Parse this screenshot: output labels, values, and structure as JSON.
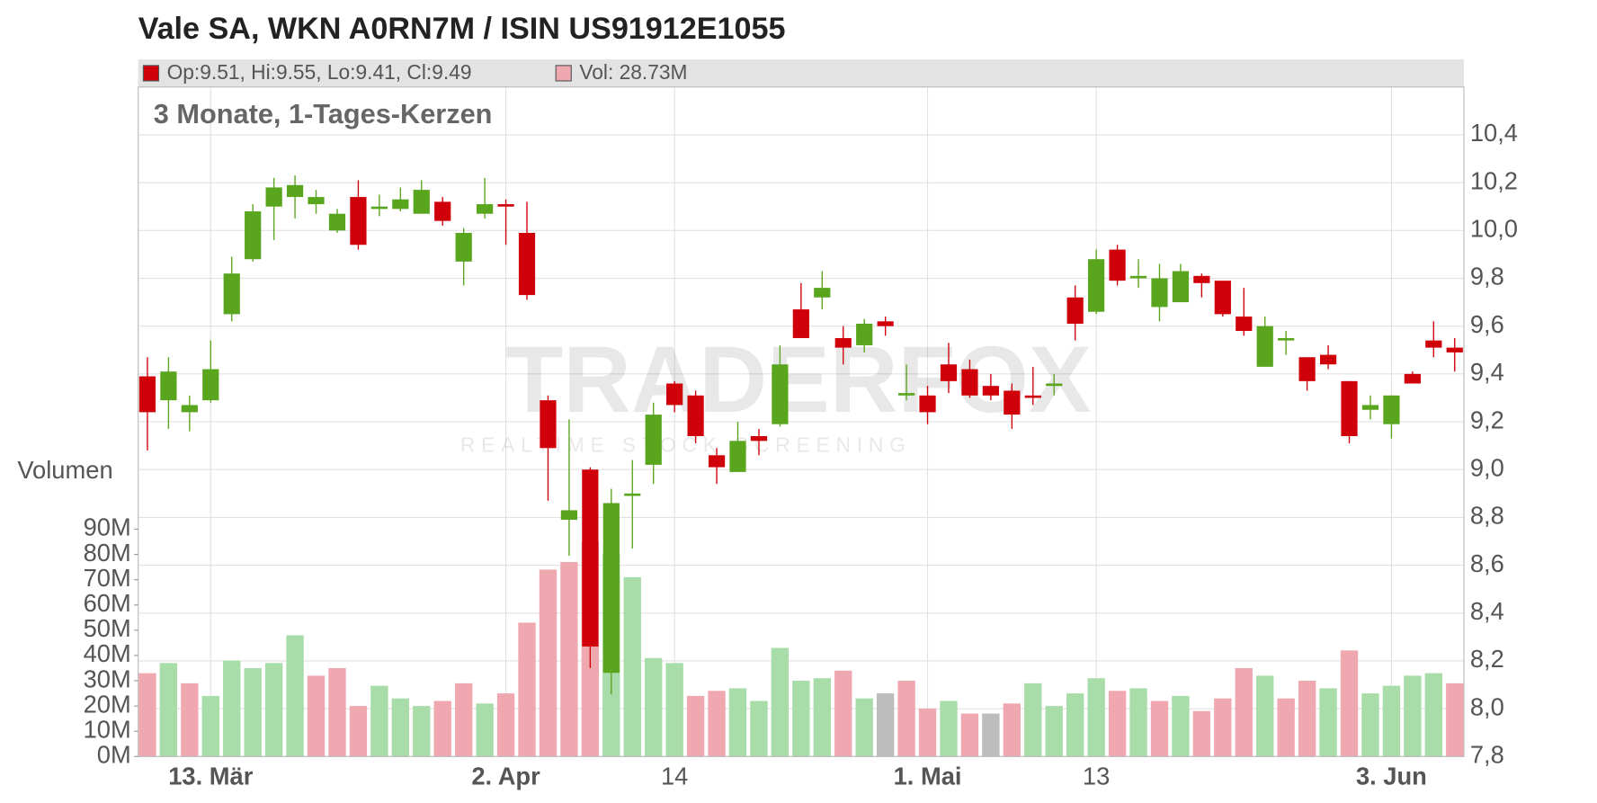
{
  "chart_data": {
    "type": "candlestick",
    "title": "Vale SA, WKN A0RN7M / ISIN US91912E1055",
    "subtitle": "3 Monate, 1-Tages-Kerzen",
    "legend_price": "Op:9.51, Hi:9.55, Lo:9.41, Cl:9.49",
    "legend_volume": "Vol: 28.73M",
    "volume_axis_label": "Volumen",
    "watermark": "TRADERFOX",
    "watermark_sub": "REALTIME STOCK SCREENING",
    "categories": [
      null,
      null,
      null,
      "13. Mär",
      null,
      null,
      null,
      null,
      null,
      null,
      null,
      null,
      null,
      null,
      null,
      null,
      null,
      "2. Apr",
      null,
      null,
      null,
      null,
      null,
      null,
      null,
      "14",
      null,
      null,
      null,
      null,
      null,
      null,
      null,
      null,
      null,
      null,
      null,
      "1. Mai",
      null,
      null,
      null,
      null,
      null,
      null,
      null,
      "13",
      null,
      null,
      null,
      null,
      null,
      null,
      null,
      null,
      null,
      null,
      null,
      null,
      null,
      "3. Jun",
      null,
      null,
      null
    ],
    "open": [
      9.39,
      9.29,
      9.24,
      9.29,
      9.65,
      9.88,
      10.1,
      10.14,
      10.11,
      10.0,
      10.14,
      10.09,
      10.09,
      10.07,
      10.12,
      9.87,
      10.07,
      10.11,
      9.99,
      9.29,
      8.79,
      9.0,
      8.15,
      8.89,
      9.02,
      9.36,
      9.31,
      9.06,
      8.99,
      9.14,
      9.19,
      9.67,
      9.72,
      9.55,
      9.52,
      9.62,
      9.31,
      9.31,
      9.44,
      9.42,
      9.35,
      9.33,
      9.31,
      9.35,
      9.72,
      9.66,
      9.92,
      9.8,
      9.68,
      9.7,
      9.81,
      9.79,
      9.64,
      9.43,
      9.54,
      9.47,
      9.48,
      9.37,
      9.25,
      9.19,
      9.4,
      9.54,
      9.51
    ],
    "high": [
      9.47,
      9.47,
      9.31,
      9.54,
      9.89,
      10.11,
      10.22,
      10.23,
      10.17,
      10.09,
      10.21,
      10.15,
      10.18,
      10.21,
      10.14,
      10.01,
      10.22,
      10.13,
      10.12,
      9.31,
      9.21,
      9.01,
      8.92,
      9.04,
      9.28,
      9.37,
      9.33,
      9.09,
      9.2,
      9.17,
      9.52,
      9.78,
      9.83,
      9.6,
      9.63,
      9.64,
      9.44,
      9.35,
      9.53,
      9.46,
      9.4,
      9.36,
      9.43,
      9.4,
      9.77,
      9.92,
      9.94,
      9.88,
      9.86,
      9.86,
      9.82,
      9.79,
      9.76,
      9.64,
      9.58,
      9.47,
      9.52,
      9.37,
      9.31,
      9.31,
      9.41,
      9.62,
      9.55
    ],
    "low": [
      9.08,
      9.17,
      9.16,
      9.28,
      9.62,
      9.87,
      9.96,
      10.05,
      10.07,
      9.99,
      9.92,
      10.06,
      10.08,
      10.07,
      10.02,
      9.77,
      10.05,
      9.94,
      9.71,
      8.87,
      8.64,
      8.17,
      8.06,
      8.67,
      8.94,
      9.24,
      9.11,
      8.94,
      8.99,
      9.06,
      9.18,
      9.55,
      9.67,
      9.44,
      9.49,
      9.56,
      9.29,
      9.19,
      9.32,
      9.3,
      9.29,
      9.17,
      9.27,
      9.31,
      9.54,
      9.65,
      9.77,
      9.76,
      9.62,
      9.7,
      9.72,
      9.64,
      9.56,
      9.43,
      9.48,
      9.33,
      9.42,
      9.11,
      9.21,
      9.13,
      9.36,
      9.47,
      9.41
    ],
    "close": [
      9.24,
      9.41,
      9.27,
      9.42,
      9.82,
      10.08,
      10.18,
      10.19,
      10.14,
      10.07,
      9.94,
      10.1,
      10.13,
      10.17,
      10.04,
      9.99,
      10.11,
      10.1,
      9.73,
      9.09,
      8.83,
      8.26,
      8.86,
      8.9,
      9.23,
      9.27,
      9.14,
      9.01,
      9.12,
      9.12,
      9.44,
      9.55,
      9.76,
      9.51,
      9.61,
      9.6,
      9.32,
      9.24,
      9.37,
      9.31,
      9.31,
      9.23,
      9.3,
      9.36,
      9.61,
      9.88,
      9.79,
      9.81,
      9.8,
      9.83,
      9.78,
      9.65,
      9.58,
      9.6,
      9.55,
      9.37,
      9.44,
      9.14,
      9.27,
      9.31,
      9.36,
      9.51,
      9.49
    ],
    "volume": [
      33,
      37,
      29,
      24,
      38,
      35,
      37,
      48,
      32,
      35,
      20,
      28,
      23,
      20,
      22,
      29,
      21,
      25,
      53,
      74,
      77,
      85,
      80,
      71,
      39,
      37,
      24,
      26,
      27,
      22,
      43,
      30,
      31,
      34,
      23,
      25,
      30,
      19,
      22,
      17,
      17,
      21,
      29,
      20,
      25,
      31,
      26,
      27,
      22,
      24,
      18,
      23,
      35,
      32,
      23,
      30,
      27,
      42,
      25,
      28,
      32,
      33,
      29
    ],
    "volume_colors": [
      "#f0a8b0",
      "#a8dca8",
      "#f0a8b0",
      "#a8dca8",
      "#a8dca8",
      "#a8dca8",
      "#a8dca8",
      "#a8dca8",
      "#f0a8b0",
      "#f0a8b0",
      "#f0a8b0",
      "#a8dca8",
      "#a8dca8",
      "#a8dca8",
      "#f0a8b0",
      "#f0a8b0",
      "#a8dca8",
      "#f0a8b0",
      "#f0a8b0",
      "#f0a8b0",
      "#f0a8b0",
      "#f0a8b0",
      "#a8dca8",
      "#a8dca8",
      "#a8dca8",
      "#a8dca8",
      "#f0a8b0",
      "#f0a8b0",
      "#a8dca8",
      "#a8dca8",
      "#a8dca8",
      "#a8dca8",
      "#a8dca8",
      "#f0a8b0",
      "#a8dca8",
      "#bdbdbd",
      "#f0a8b0",
      "#f0a8b0",
      "#a8dca8",
      "#f0a8b0",
      "#bdbdbd",
      "#f0a8b0",
      "#a8dca8",
      "#a8dca8",
      "#a8dca8",
      "#a8dca8",
      "#f0a8b0",
      "#a8dca8",
      "#f0a8b0",
      "#a8dca8",
      "#f0a8b0",
      "#f0a8b0",
      "#f0a8b0",
      "#a8dca8",
      "#f0a8b0",
      "#f0a8b0",
      "#a8dca8",
      "#f0a8b0",
      "#a8dca8",
      "#a8dca8",
      "#a8dca8",
      "#a8dca8",
      "#f0a8b0"
    ],
    "up_color": "#5aa51e",
    "down_color": "#d0000a",
    "ylim": [
      7.8,
      10.6
    ],
    "yticks": [
      {
        "value": 7.8,
        "label": "7,8"
      },
      {
        "value": 8.0,
        "label": "8,0"
      },
      {
        "value": 8.2,
        "label": "8,2"
      },
      {
        "value": 8.4,
        "label": "8,4"
      },
      {
        "value": 8.6,
        "label": "8,6"
      },
      {
        "value": 8.8,
        "label": "8,8"
      },
      {
        "value": 9.0,
        "label": "9,0"
      },
      {
        "value": 9.2,
        "label": "9,2"
      },
      {
        "value": 9.4,
        "label": "9,4"
      },
      {
        "value": 9.6,
        "label": "9,6"
      },
      {
        "value": 9.8,
        "label": "9,8"
      },
      {
        "value": 10.0,
        "label": "10,0"
      },
      {
        "value": 10.2,
        "label": "10,2"
      },
      {
        "value": 10.4,
        "label": "10,4"
      }
    ],
    "y2lim": [
      0,
      265
    ],
    "y2ticks": [
      {
        "value": 0,
        "label": "0M"
      },
      {
        "value": 10,
        "label": "10M"
      },
      {
        "value": 20,
        "label": "20M"
      },
      {
        "value": 30,
        "label": "30M"
      },
      {
        "value": 40,
        "label": "40M"
      },
      {
        "value": 50,
        "label": "50M"
      },
      {
        "value": 60,
        "label": "60M"
      },
      {
        "value": 70,
        "label": "70M"
      },
      {
        "value": 80,
        "label": "80M"
      },
      {
        "value": 90,
        "label": "90M"
      }
    ],
    "grid": true
  }
}
